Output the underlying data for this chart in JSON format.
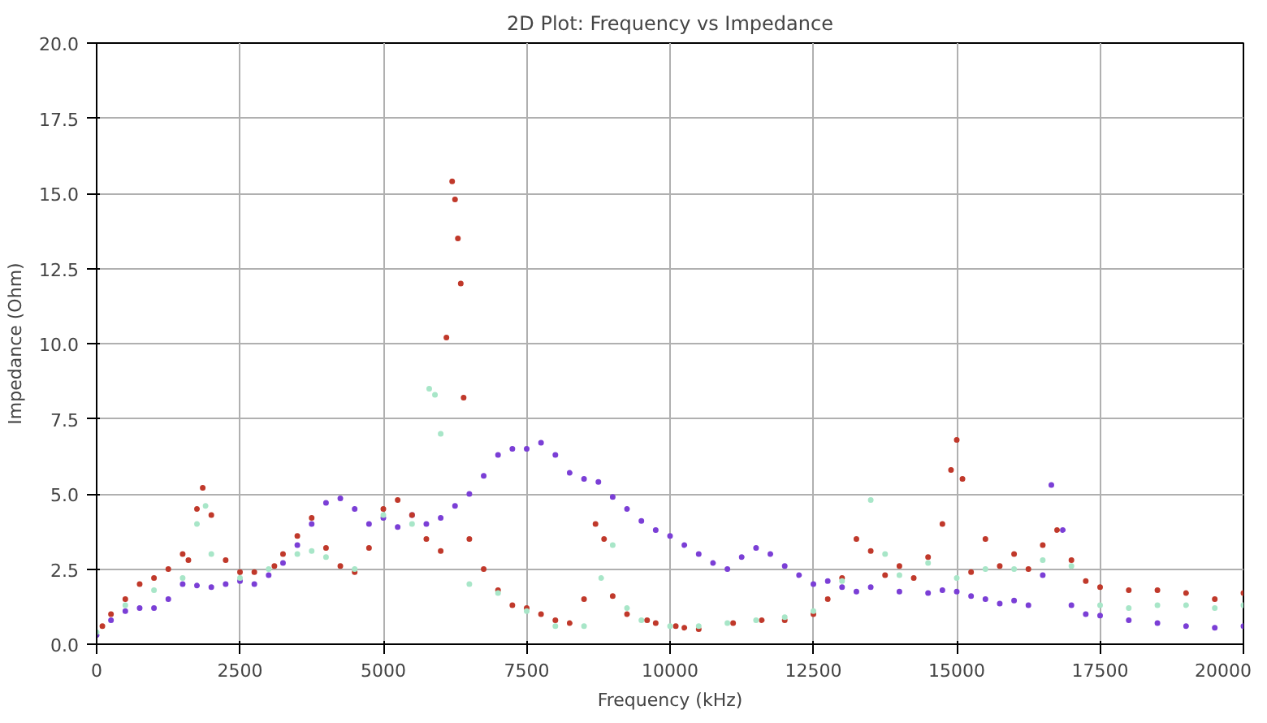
{
  "chart_data": {
    "type": "scatter",
    "title": "2D Plot: Frequency vs Impedance",
    "xlabel": "Frequency (kHz)",
    "ylabel": "Impedance (Ohm)",
    "xlim": [
      0,
      20000
    ],
    "ylim": [
      0,
      20
    ],
    "xticks": [
      0,
      2500,
      5000,
      7500,
      10000,
      12500,
      15000,
      17500,
      20000
    ],
    "yticks": [
      {
        "value": 0,
        "label": "0.0"
      },
      {
        "value": 2.5,
        "label": "2.5"
      },
      {
        "value": 5,
        "label": "5.0"
      },
      {
        "value": 7.5,
        "label": "7.5"
      },
      {
        "value": 10,
        "label": "10.0"
      },
      {
        "value": 12.5,
        "label": "12.5"
      },
      {
        "value": 15,
        "label": "15.0"
      },
      {
        "value": 17.5,
        "label": "17.5"
      },
      {
        "value": 20,
        "label": "20.0"
      }
    ],
    "grid": true,
    "marker": "circle",
    "series": [
      {
        "color": "#7b3fd6",
        "x": [
          0,
          250,
          500,
          750,
          1000,
          1250,
          1500,
          1750,
          2000,
          2250,
          2500,
          2750,
          3000,
          3250,
          3500,
          3750,
          4000,
          4250,
          4500,
          4750,
          5000,
          5250,
          5500,
          5750,
          6000,
          6250,
          6500,
          6750,
          7000,
          7250,
          7500,
          7750,
          8000,
          8250,
          8500,
          8750,
          9000,
          9250,
          9500,
          9750,
          10000,
          10250,
          10500,
          10750,
          11000,
          11250,
          11500,
          11750,
          12000,
          12250,
          12500,
          12750,
          13000,
          13250,
          13500,
          14000,
          14500,
          14750,
          15000,
          15250,
          15500,
          15750,
          16000,
          16250,
          16500,
          16650,
          16850,
          17000,
          17250,
          17500,
          18000,
          18500,
          19000,
          19500,
          20000
        ],
        "values": [
          0.3,
          0.8,
          1.1,
          1.2,
          1.2,
          1.5,
          2.0,
          1.95,
          1.9,
          2.0,
          2.1,
          2.0,
          2.3,
          2.7,
          3.3,
          4.0,
          4.7,
          4.85,
          4.5,
          4.0,
          4.2,
          3.9,
          4.3,
          4.0,
          4.2,
          4.6,
          5.0,
          5.6,
          6.3,
          6.5,
          6.5,
          6.7,
          6.3,
          5.7,
          5.5,
          5.4,
          4.9,
          4.5,
          4.1,
          3.8,
          3.6,
          3.3,
          3.0,
          2.7,
          2.5,
          2.9,
          3.2,
          3.0,
          2.6,
          2.3,
          2.0,
          2.1,
          1.9,
          1.75,
          1.9,
          1.75,
          1.7,
          1.8,
          1.75,
          1.6,
          1.5,
          1.35,
          1.45,
          1.3,
          2.3,
          5.3,
          3.8,
          1.3,
          1.0,
          0.95,
          0.8,
          0.7,
          0.6,
          0.55,
          0.6
        ]
      },
      {
        "color": "#c0392b",
        "x": [
          100,
          250,
          500,
          750,
          1000,
          1250,
          1500,
          1600,
          1750,
          1850,
          2000,
          2250,
          2500,
          2750,
          3100,
          3250,
          3500,
          3750,
          4000,
          4250,
          4500,
          4750,
          5000,
          5250,
          5500,
          5750,
          6000,
          6100,
          6200,
          6250,
          6300,
          6350,
          6400,
          6500,
          6750,
          7000,
          7250,
          7500,
          7750,
          8000,
          8250,
          8500,
          8700,
          8850,
          9000,
          9250,
          9600,
          9750,
          10100,
          10250,
          10500,
          11100,
          11600,
          12000,
          12500,
          12750,
          13000,
          13250,
          13500,
          13750,
          14000,
          14250,
          14500,
          14750,
          14900,
          15000,
          15100,
          15250,
          15500,
          15750,
          16000,
          16250,
          16500,
          16750,
          17000,
          17250,
          17500,
          18000,
          18500,
          19000,
          19500,
          20000
        ],
        "values": [
          0.6,
          1.0,
          1.5,
          2.0,
          2.2,
          2.5,
          3.0,
          2.8,
          4.5,
          5.2,
          4.3,
          2.8,
          2.4,
          2.4,
          2.6,
          3.0,
          3.6,
          4.2,
          3.2,
          2.6,
          2.4,
          3.2,
          4.5,
          4.8,
          4.3,
          3.5,
          3.1,
          10.2,
          15.4,
          14.8,
          13.5,
          12.0,
          8.2,
          3.5,
          2.5,
          1.8,
          1.3,
          1.2,
          1.0,
          0.8,
          0.7,
          1.5,
          4.0,
          3.5,
          1.6,
          1.0,
          0.8,
          0.7,
          0.6,
          0.55,
          0.5,
          0.7,
          0.8,
          0.8,
          1.0,
          1.5,
          2.2,
          3.5,
          3.1,
          2.3,
          2.6,
          2.2,
          2.9,
          4.0,
          5.8,
          6.8,
          5.5,
          2.4,
          3.5,
          2.6,
          3.0,
          2.5,
          3.3,
          3.8,
          2.8,
          2.1,
          1.9,
          1.8,
          1.8,
          1.7,
          1.5,
          1.7
        ]
      },
      {
        "color": "#a8e6c8",
        "x": [
          0,
          500,
          1000,
          1500,
          1750,
          1900,
          2000,
          2500,
          3000,
          3500,
          3750,
          4000,
          4500,
          5000,
          5500,
          5800,
          5900,
          6000,
          6500,
          7000,
          7500,
          8000,
          8500,
          8800,
          9000,
          9250,
          9500,
          10000,
          10500,
          11000,
          11500,
          12000,
          12500,
          13000,
          13500,
          13750,
          14000,
          14500,
          15000,
          15500,
          16000,
          16500,
          17000,
          17500,
          18000,
          18500,
          19000,
          19500,
          20000
        ],
        "values": [
          0.4,
          1.3,
          1.8,
          2.2,
          4.0,
          4.6,
          3.0,
          2.2,
          2.5,
          3.0,
          3.1,
          2.9,
          2.5,
          4.3,
          4.0,
          8.5,
          8.3,
          7.0,
          2.0,
          1.7,
          1.1,
          0.6,
          0.6,
          2.2,
          3.3,
          1.2,
          0.8,
          0.6,
          0.6,
          0.7,
          0.8,
          0.9,
          1.1,
          2.1,
          4.8,
          3.0,
          2.3,
          2.7,
          2.2,
          2.5,
          2.5,
          2.8,
          2.6,
          1.3,
          1.2,
          1.3,
          1.3,
          1.2,
          1.3
        ]
      }
    ]
  }
}
